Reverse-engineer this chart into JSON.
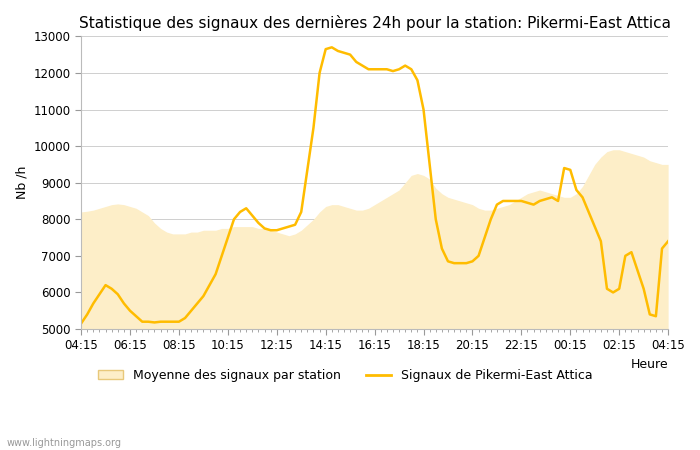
{
  "title": "Statistique des signaux des dernières 24h pour la station: Pikermi-East Attica",
  "xlabel": "Heure",
  "ylabel": "Nb /h",
  "ylim": [
    5000,
    13000
  ],
  "yticks": [
    5000,
    6000,
    7000,
    8000,
    9000,
    10000,
    11000,
    12000,
    13000
  ],
  "xtick_labels": [
    "04:15",
    "06:15",
    "08:15",
    "10:15",
    "12:15",
    "14:15",
    "16:15",
    "18:15",
    "20:15",
    "22:15",
    "00:15",
    "02:15",
    "04:15"
  ],
  "watermark": "www.lightningmaps.org",
  "fill_color": "#FDEEC8",
  "fill_edge_color": "#FDEEC8",
  "line_color": "#FFBC00",
  "line_width": 1.8,
  "background_color": "#FFFFFF",
  "grid_color": "#C8C8C8",
  "title_fontsize": 11,
  "axis_fontsize": 9,
  "tick_fontsize": 8.5,
  "legend_label_fill": "Moyenne des signaux par station",
  "legend_label_line": "Signaux de Pikermi-East Attica",
  "n_points": 97,
  "signal_y": [
    5150,
    5400,
    5700,
    5950,
    6200,
    6100,
    5950,
    5700,
    5500,
    5350,
    5200,
    5200,
    5180,
    5200,
    5200,
    5200,
    5200,
    5300,
    5500,
    5700,
    5900,
    6200,
    6500,
    7000,
    7500,
    8000,
    8200,
    8300,
    8100,
    7900,
    7750,
    7700,
    7700,
    7750,
    7800,
    7850,
    8200,
    9350,
    10500,
    12000,
    12650,
    12700,
    12600,
    12550,
    12500,
    12300,
    12200,
    12100,
    12100,
    12100,
    12100,
    12050,
    12100,
    12200,
    12100,
    11800,
    11000,
    9500,
    8000,
    7200,
    6850,
    6800,
    6800,
    6800,
    6850,
    7000,
    7500,
    8000,
    8400,
    8500,
    8500,
    8500,
    8500,
    8450,
    8400,
    8500,
    8550,
    8600,
    8500,
    9400,
    9350,
    8800,
    8600,
    8200,
    7800,
    7400,
    6100,
    6000,
    6100,
    7000,
    7100,
    6600,
    6100,
    5400,
    5350,
    7200,
    7400
  ],
  "mean_y": [
    8200,
    8220,
    8250,
    8300,
    8350,
    8400,
    8420,
    8400,
    8350,
    8300,
    8200,
    8100,
    7900,
    7750,
    7650,
    7600,
    7600,
    7600,
    7650,
    7650,
    7700,
    7700,
    7700,
    7750,
    7750,
    7800,
    7800,
    7800,
    7800,
    7750,
    7750,
    7700,
    7650,
    7600,
    7550,
    7600,
    7700,
    7850,
    8000,
    8200,
    8350,
    8400,
    8400,
    8350,
    8300,
    8250,
    8250,
    8300,
    8400,
    8500,
    8600,
    8700,
    8800,
    9000,
    9200,
    9250,
    9200,
    9100,
    8850,
    8700,
    8600,
    8550,
    8500,
    8450,
    8400,
    8300,
    8250,
    8250,
    8300,
    8350,
    8400,
    8500,
    8600,
    8700,
    8750,
    8800,
    8750,
    8700,
    8650,
    8600,
    8600,
    8700,
    8900,
    9200,
    9500,
    9700,
    9850,
    9900,
    9900,
    9850,
    9800,
    9750,
    9700,
    9600,
    9550,
    9500,
    9500
  ],
  "xtick_positions": [
    0,
    16,
    32,
    48,
    64,
    80,
    96,
    112,
    128,
    144,
    160,
    176,
    192
  ]
}
